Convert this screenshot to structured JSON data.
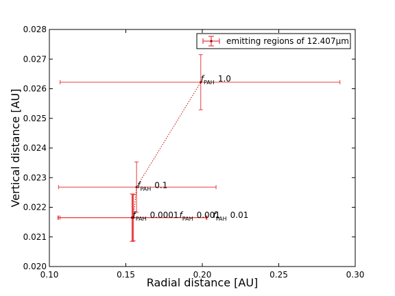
{
  "chart_data": {
    "type": "scatter",
    "xlabel": "Radial distance [AU]",
    "ylabel": "Vertical distance [AU]",
    "xlim": [
      0.1,
      0.3
    ],
    "ylim": [
      0.02,
      0.028
    ],
    "xticks": [
      "0.10",
      "0.15",
      "0.20",
      "0.25",
      "0.30"
    ],
    "yticks": [
      "0.020",
      "0.021",
      "0.022",
      "0.023",
      "0.024",
      "0.025",
      "0.026",
      "0.027",
      "0.028"
    ],
    "grid": false,
    "legend": {
      "position": "top-right",
      "label": "emitting regions of 12.407μm"
    },
    "colors": {
      "series": "#e8383d",
      "marker": "#8b0000",
      "line": "#c00000"
    },
    "series": [
      {
        "label": "emitting regions of 12.407μm",
        "points": [
          {
            "x": 0.154,
            "y": 0.02165,
            "xerr": [
              0.0485,
              0.0485
            ],
            "yerr": [
              0.0008,
              0.0008
            ],
            "annotation": "f_PAH 0.0001"
          },
          {
            "x": 0.1545,
            "y": 0.02165,
            "xerr": [
              0.0485,
              0.0485
            ],
            "yerr": [
              0.0008,
              0.0008
            ],
            "annotation": "f_PAH 0.001"
          },
          {
            "x": 0.155,
            "y": 0.02165,
            "xerr": [
              0.048,
              0.048
            ],
            "yerr": [
              0.00078,
              0.00078
            ],
            "annotation": "f_PAH 0.01"
          },
          {
            "x": 0.157,
            "y": 0.02268,
            "xerr": [
              0.051,
              0.052
            ],
            "yerr": [
              0.00085,
              0.00085
            ],
            "annotation": "f_PAH 0.1"
          },
          {
            "x": 0.199,
            "y": 0.02622,
            "xerr": [
              0.092,
              0.091
            ],
            "yerr": [
              0.00093,
              0.00093
            ],
            "annotation": "f_PAH 1.0"
          }
        ]
      }
    ],
    "annotations": [
      {
        "text": "f",
        "sub": "PAH",
        "value": "1.0",
        "x": 0.199,
        "y": 0.02622
      },
      {
        "text": "f",
        "sub": "PAH",
        "value": "0.1",
        "x": 0.1575,
        "y": 0.02262
      },
      {
        "text": "f",
        "sub": "PAH",
        "value": "0.0001",
        "x": 0.1545,
        "y": 0.02162
      },
      {
        "text": "f",
        "sub": "PAH",
        "value": "0.001",
        "x": 0.185,
        "y": 0.02162
      },
      {
        "text": "f",
        "sub": "PAH",
        "value": "0.01",
        "x": 0.207,
        "y": 0.02162
      }
    ]
  }
}
